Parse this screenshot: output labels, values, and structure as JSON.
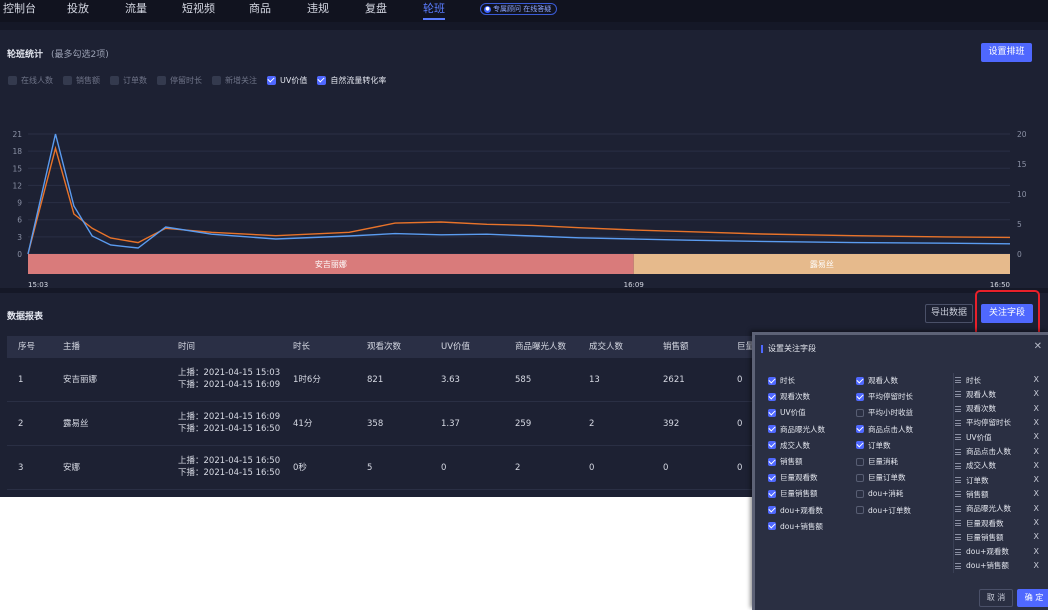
{
  "nav": {
    "items": [
      "控制台",
      "投放",
      "流量",
      "短视频",
      "商品",
      "违规",
      "复盘",
      "轮班"
    ],
    "active_index": 7,
    "badge_icon": "live-icon",
    "badge": "专属顾问 在线答疑"
  },
  "chart_panel": {
    "title": "轮班统计",
    "subtitle": "(最多勾选2项)",
    "set_shift_button": "设置排班",
    "legend": [
      {
        "label": "在线人数",
        "checked": false
      },
      {
        "label": "销售额",
        "checked": false
      },
      {
        "label": "订单数",
        "checked": false
      },
      {
        "label": "停留时长",
        "checked": false
      },
      {
        "label": "新增关注",
        "checked": false
      },
      {
        "label": "UV价值",
        "checked": true
      },
      {
        "label": "自然流量转化率",
        "checked": true
      }
    ]
  },
  "chart_data": {
    "type": "line",
    "title": "",
    "xlabel": "",
    "ylabel": "",
    "x_ticks": [
      "15:03",
      "16:09",
      "16:50"
    ],
    "x": [
      0,
      3,
      5,
      7,
      9,
      12,
      15,
      20,
      27,
      35,
      40,
      45,
      50,
      55,
      60,
      66,
      72,
      80,
      90,
      100,
      107
    ],
    "y_left": {
      "ticks": [
        0,
        3,
        6,
        9,
        12,
        15,
        18,
        21
      ],
      "ylim": [
        0,
        21
      ]
    },
    "y_right": {
      "ticks": [
        0,
        5,
        10,
        15,
        20
      ],
      "ylim": [
        0,
        20
      ]
    },
    "series": [
      {
        "axis": "left",
        "color": "#e8732a",
        "values": [
          0,
          18.5,
          7,
          4.5,
          2.8,
          2,
          4.5,
          3.8,
          3.2,
          3.8,
          5.4,
          5.6,
          5.2,
          5.0,
          4.6,
          4.2,
          3.9,
          3.5,
          3.2,
          3.0,
          2.9
        ]
      },
      {
        "axis": "right",
        "color": "#5b9cf0",
        "values": [
          0,
          20,
          8,
          3,
          1.5,
          1,
          4.5,
          3.3,
          2.5,
          3.0,
          3.4,
          3.2,
          3.3,
          3.0,
          2.7,
          2.5,
          2.3,
          2.1,
          1.9,
          1.8,
          1.7
        ]
      }
    ],
    "shifts": [
      {
        "name": "安吉丽娜",
        "start": 0,
        "end": 66,
        "color": "#d97b7b"
      },
      {
        "name": "露易丝",
        "start": 66,
        "end": 107,
        "color": "#e6ba8c"
      }
    ],
    "grid": true,
    "legend": "top-left"
  },
  "table_panel": {
    "title": "数据报表",
    "export_button": "导出数据",
    "fields_button": "关注字段",
    "columns": [
      "序号",
      "主播",
      "时间",
      "时长",
      "观看次数",
      "UV价值",
      "商品曝光人数",
      "成交人数",
      "销售额",
      "巨量"
    ],
    "rows": [
      {
        "no": "1",
        "anchor": "安吉丽娜",
        "on": "上播：2021-04-15 15:03",
        "off": "下播：2021-04-15 16:09",
        "duration": "1时6分",
        "views": "821",
        "uv": "3.63",
        "exposure": "585",
        "deals": "13",
        "sales": "2621",
        "juliang": "0"
      },
      {
        "no": "2",
        "anchor": "露易丝",
        "on": "上播：2021-04-15 16:09",
        "off": "下播：2021-04-15 16:50",
        "duration": "41分",
        "views": "358",
        "uv": "1.37",
        "exposure": "259",
        "deals": "2",
        "sales": "392",
        "juliang": "0"
      },
      {
        "no": "3",
        "anchor": "安娜",
        "on": "上播：2021-04-15 16:50",
        "off": "下播：2021-04-15 16:50",
        "duration": "0秒",
        "views": "5",
        "uv": "0",
        "exposure": "2",
        "deals": "0",
        "sales": "0",
        "juliang": "0"
      }
    ]
  },
  "modal": {
    "title": "设置关注字段",
    "close_icon": "close-icon",
    "options_col1": [
      {
        "label": "时长",
        "checked": true
      },
      {
        "label": "观看次数",
        "checked": true
      },
      {
        "label": "UV价值",
        "checked": true
      },
      {
        "label": "商品曝光人数",
        "checked": true
      },
      {
        "label": "成交人数",
        "checked": true
      },
      {
        "label": "销售额",
        "checked": true
      },
      {
        "label": "巨量观看数",
        "checked": true
      },
      {
        "label": "巨量销售额",
        "checked": true
      },
      {
        "label": "dou+观看数",
        "checked": true
      },
      {
        "label": "dou+销售额",
        "checked": true
      }
    ],
    "options_col2": [
      {
        "label": "观看人数",
        "checked": true
      },
      {
        "label": "平均停留时长",
        "checked": true
      },
      {
        "label": "平均小时收益",
        "checked": false
      },
      {
        "label": "商品点击人数",
        "checked": true
      },
      {
        "label": "订单数",
        "checked": true
      },
      {
        "label": "巨量消耗",
        "checked": false
      },
      {
        "label": "巨量订单数",
        "checked": false
      },
      {
        "label": "dou+消耗",
        "checked": false
      },
      {
        "label": "dou+订单数",
        "checked": false
      }
    ],
    "selected": [
      "时长",
      "观看人数",
      "观看次数",
      "平均停留时长",
      "UV价值",
      "商品点击人数",
      "成交人数",
      "订单数",
      "销售额",
      "商品曝光人数",
      "巨量观看数",
      "巨量销售额",
      "dou+观看数",
      "dou+销售额"
    ],
    "remove_label": "X",
    "cancel_button": "取 消",
    "confirm_button": "确 定"
  }
}
